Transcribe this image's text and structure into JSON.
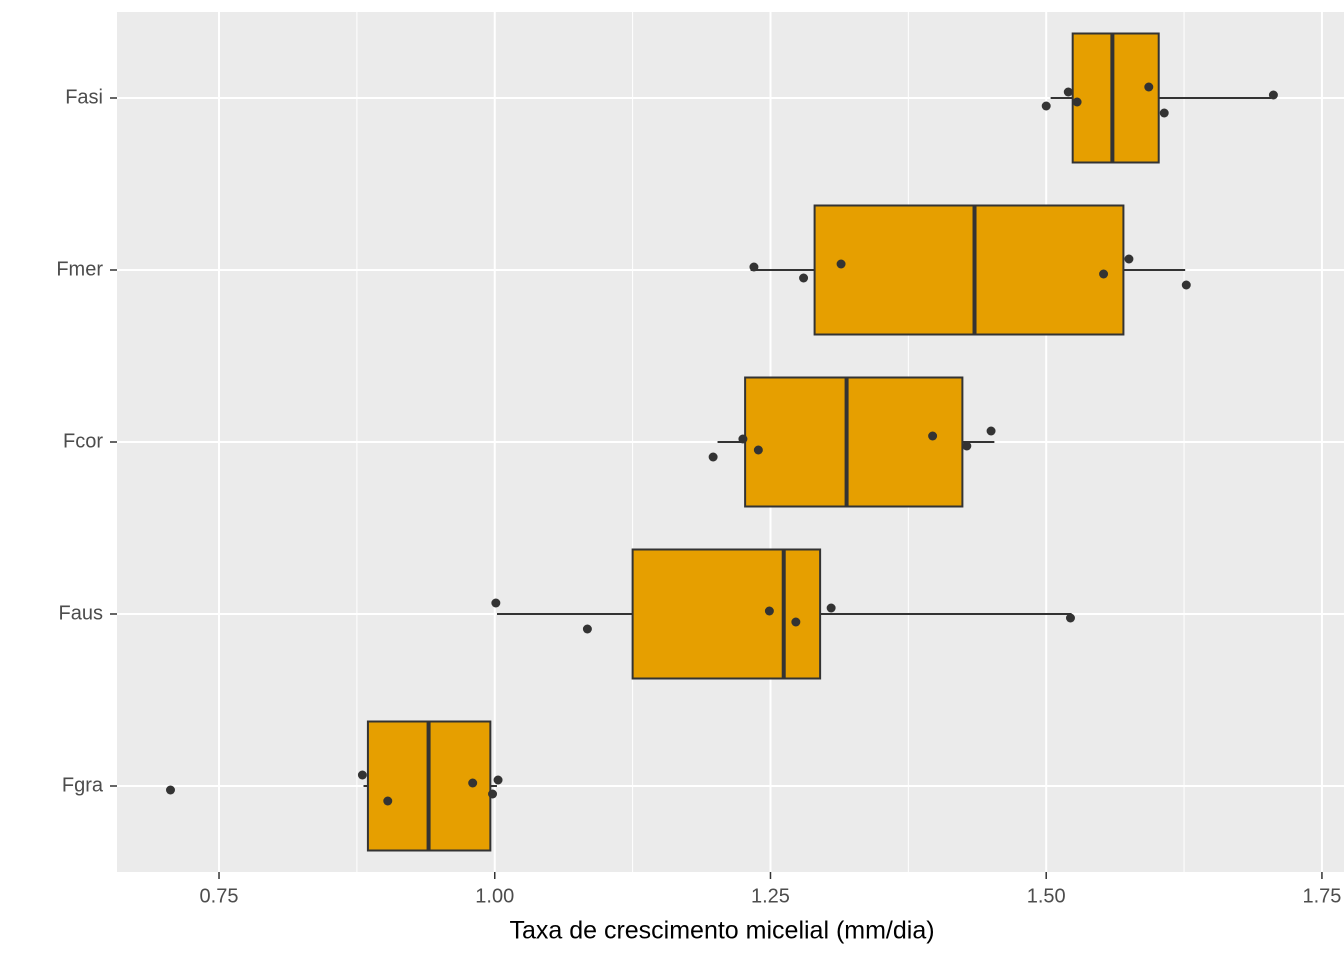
{
  "chart_data": {
    "type": "box",
    "x_label": "Taxa de crescimento micelial (mm/dia)",
    "categories": [
      "Fgra",
      "Faus",
      "Fcor",
      "Fmer",
      "Fasi"
    ],
    "color": "#E69F00",
    "boxes": [
      {
        "low": 0.881,
        "q1": 0.885,
        "median": 0.94,
        "q3": 0.996,
        "high": 1.002
      },
      {
        "low": 1.002,
        "q1": 1.125,
        "median": 1.262,
        "q3": 1.295,
        "high": 1.523
      },
      {
        "low": 1.202,
        "q1": 1.227,
        "median": 1.319,
        "q3": 1.424,
        "high": 1.453
      },
      {
        "low": 1.232,
        "q1": 1.29,
        "median": 1.435,
        "q3": 1.57,
        "high": 1.626
      },
      {
        "low": 1.504,
        "q1": 1.524,
        "median": 1.56,
        "q3": 1.602,
        "high": 1.704
      }
    ],
    "points": [
      [
        0.706,
        0.88,
        0.903,
        0.98,
        0.998,
        1.003
      ],
      [
        1.001,
        1.084,
        1.249,
        1.273,
        1.305,
        1.522
      ],
      [
        1.198,
        1.225,
        1.239,
        1.397,
        1.428,
        1.45
      ],
      [
        1.235,
        1.28,
        1.314,
        1.552,
        1.575,
        1.627
      ],
      [
        1.5,
        1.52,
        1.528,
        1.593,
        1.607,
        1.706
      ]
    ],
    "xlim": [
      0.6575,
      1.77
    ],
    "xticks": [
      0.75,
      {
        "value": 1.0,
        "label": "1.00"
      },
      1.25,
      {
        "value": 1.5,
        "label": "1.50"
      },
      1.75
    ],
    "grid": true
  }
}
